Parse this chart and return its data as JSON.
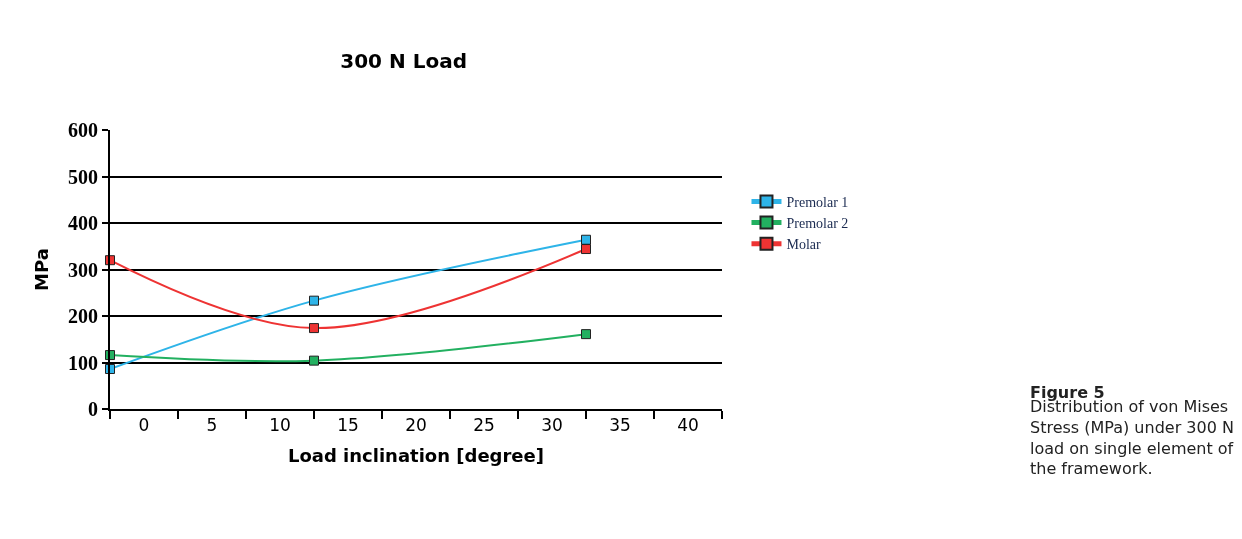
{
  "chart_data": {
    "type": "line",
    "title": "300 N Load",
    "xlabel": "Load inclination [degree]",
    "ylabel": "MPa",
    "x": [
      -2.5,
      12.5,
      32.5
    ],
    "series": [
      {
        "name": "Premolar 1",
        "color": "#2eb4e8",
        "values": [
          86,
          233,
          364
        ]
      },
      {
        "name": "Premolar 2",
        "color": "#22b060",
        "values": [
          116,
          104,
          161
        ]
      },
      {
        "name": "Molar",
        "color": "#ee3333",
        "values": [
          320,
          174,
          344
        ]
      }
    ],
    "xlim": [
      -2.5,
      42.5
    ],
    "xticks": [
      0,
      5,
      10,
      15,
      20,
      25,
      30,
      35,
      40
    ],
    "ylim": [
      0,
      600
    ],
    "yticks": [
      0,
      100,
      200,
      300,
      400,
      500,
      600
    ],
    "grid": "y",
    "legend": "right",
    "marker": "square",
    "line_style": "solid",
    "annotations": [
      "**Figure 5**",
      "Distribution of von Mises Stress (MPa) under 300 N load on single element of the framework."
    ]
  }
}
